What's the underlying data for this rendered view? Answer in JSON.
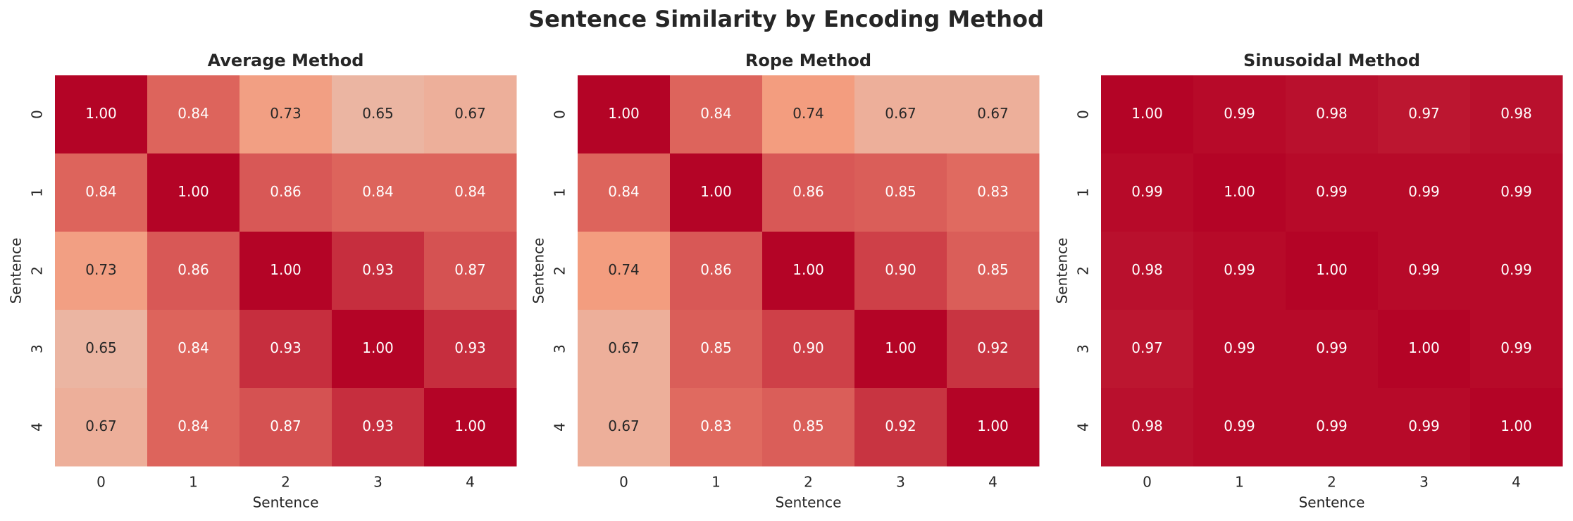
{
  "title": "Sentence Similarity by Encoding Method",
  "chart_data": [
    {
      "type": "heatmap",
      "title": "Average Method",
      "x_label": "Sentence",
      "y_label": "Sentence",
      "xticks": [
        0,
        1,
        2,
        3,
        4
      ],
      "yticks": [
        0,
        1,
        2,
        3,
        4
      ],
      "colormap": [
        "#3b4cc0",
        "#8db0fe",
        "#dddddd",
        "#f49a7b",
        "#b40426"
      ],
      "clim": [
        0,
        1
      ],
      "values": [
        [
          1.0,
          0.84,
          0.73,
          0.65,
          0.67
        ],
        [
          0.84,
          1.0,
          0.86,
          0.84,
          0.84
        ],
        [
          0.73,
          0.86,
          1.0,
          0.93,
          0.87
        ],
        [
          0.65,
          0.84,
          0.93,
          1.0,
          0.93
        ],
        [
          0.67,
          0.84,
          0.87,
          0.93,
          1.0
        ]
      ],
      "value_labels": [
        [
          "1.00",
          "0.84",
          "0.73",
          "0.65",
          "0.67"
        ],
        [
          "0.84",
          "1.00",
          "0.86",
          "0.84",
          "0.84"
        ],
        [
          "0.73",
          "0.86",
          "1.00",
          "0.93",
          "0.87"
        ],
        [
          "0.65",
          "0.84",
          "0.93",
          "1.00",
          "0.93"
        ],
        [
          "0.67",
          "0.84",
          "0.87",
          "0.93",
          "1.00"
        ]
      ]
    },
    {
      "type": "heatmap",
      "title": "Rope Method",
      "x_label": "Sentence",
      "y_label": "Sentence",
      "xticks": [
        0,
        1,
        2,
        3,
        4
      ],
      "yticks": [
        0,
        1,
        2,
        3,
        4
      ],
      "colormap": [
        "#3b4cc0",
        "#8db0fe",
        "#dddddd",
        "#f49a7b",
        "#b40426"
      ],
      "clim": [
        0,
        1
      ],
      "values": [
        [
          1.0,
          0.84,
          0.74,
          0.67,
          0.67
        ],
        [
          0.84,
          1.0,
          0.86,
          0.85,
          0.83
        ],
        [
          0.74,
          0.86,
          1.0,
          0.9,
          0.85
        ],
        [
          0.67,
          0.85,
          0.9,
          1.0,
          0.92
        ],
        [
          0.67,
          0.83,
          0.85,
          0.92,
          1.0
        ]
      ],
      "value_labels": [
        [
          "1.00",
          "0.84",
          "0.74",
          "0.67",
          "0.67"
        ],
        [
          "0.84",
          "1.00",
          "0.86",
          "0.85",
          "0.83"
        ],
        [
          "0.74",
          "0.86",
          "1.00",
          "0.90",
          "0.85"
        ],
        [
          "0.67",
          "0.85",
          "0.90",
          "1.00",
          "0.92"
        ],
        [
          "0.67",
          "0.83",
          "0.85",
          "0.92",
          "1.00"
        ]
      ]
    },
    {
      "type": "heatmap",
      "title": "Sinusoidal Method",
      "x_label": "Sentence",
      "y_label": "Sentence",
      "xticks": [
        0,
        1,
        2,
        3,
        4
      ],
      "yticks": [
        0,
        1,
        2,
        3,
        4
      ],
      "colormap": [
        "#3b4cc0",
        "#8db0fe",
        "#dddddd",
        "#f49a7b",
        "#b40426"
      ],
      "clim": [
        0,
        1
      ],
      "values": [
        [
          1.0,
          0.99,
          0.98,
          0.97,
          0.98
        ],
        [
          0.99,
          1.0,
          0.99,
          0.99,
          0.99
        ],
        [
          0.98,
          0.99,
          1.0,
          0.99,
          0.99
        ],
        [
          0.97,
          0.99,
          0.99,
          1.0,
          0.99
        ],
        [
          0.98,
          0.99,
          0.99,
          0.99,
          1.0
        ]
      ],
      "value_labels": [
        [
          "1.00",
          "0.99",
          "0.98",
          "0.97",
          "0.98"
        ],
        [
          "0.99",
          "1.00",
          "0.99",
          "0.99",
          "0.99"
        ],
        [
          "0.98",
          "0.99",
          "1.00",
          "0.99",
          "0.99"
        ],
        [
          "0.97",
          "0.99",
          "0.99",
          "1.00",
          "0.99"
        ],
        [
          "0.98",
          "0.99",
          "0.99",
          "0.99",
          "1.00"
        ]
      ]
    }
  ]
}
